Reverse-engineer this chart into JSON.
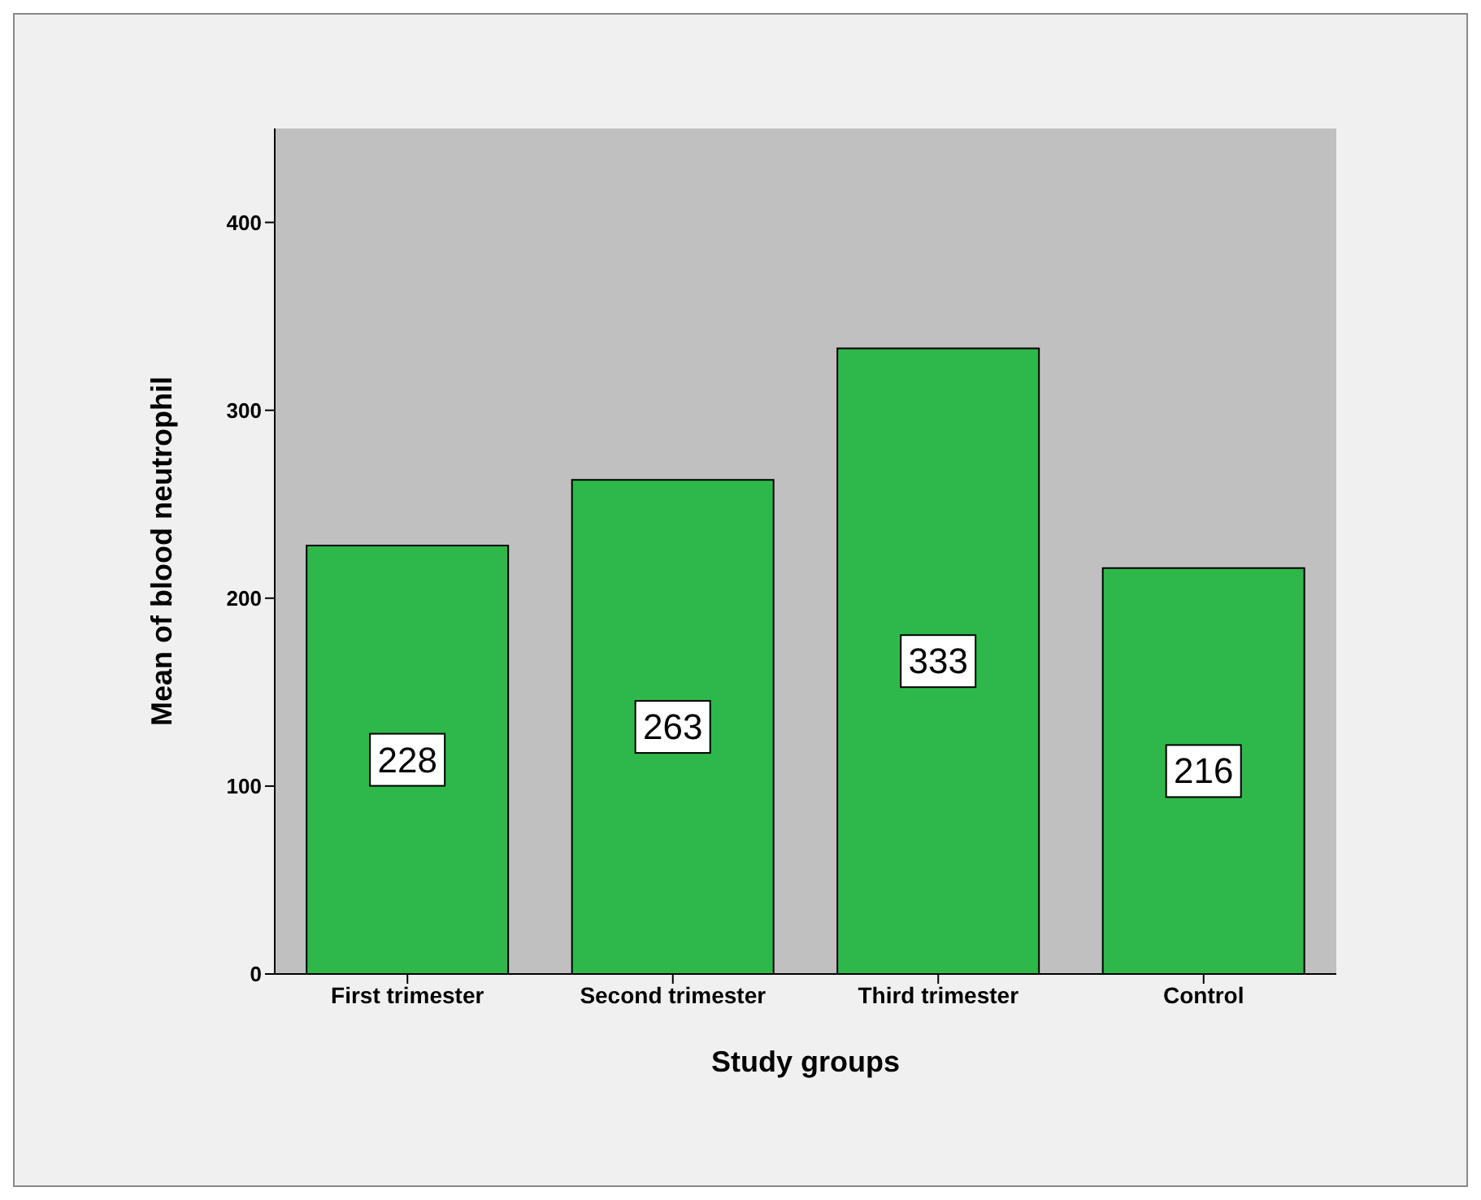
{
  "chart_data": {
    "type": "bar",
    "xlabel": "Study groups",
    "ylabel": "Mean  of blood neutrophil",
    "categories": [
      "First trimester",
      "Second trimester",
      "Third trimester",
      "Control"
    ],
    "values": [
      228,
      263,
      333,
      216
    ],
    "color": "#2fb84a",
    "ylim": [
      0,
      450
    ],
    "yticks": [
      0,
      100,
      200,
      300,
      400
    ],
    "data_labels": true
  }
}
